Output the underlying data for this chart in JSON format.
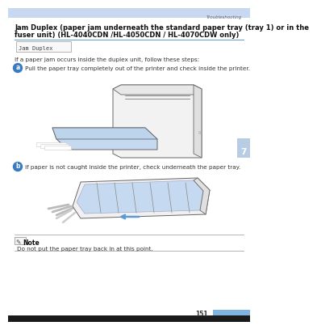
{
  "bg_color": "#ffffff",
  "header_bar_color": "#c8d8f0",
  "top_label": "Troubleshooting",
  "title_line1": "Jam Duplex (paper jam underneath the standard paper tray (tray 1) or in the",
  "title_line2": "fuser unit) (HL-4040CDN /HL-4050CDN / HL-4070CDW only)",
  "title_fontsize": 6.0,
  "lcd_text": "Jam Duplex",
  "intro_text": "If a paper jam occurs inside the duplex unit, follow these steps:",
  "step1_text": "Pull the paper tray completely out of the printer and check inside the printer.",
  "step2_text": "If paper is not caught inside the printer, check underneath the paper tray.",
  "note_title": "Note",
  "note_text": "Do not put the paper tray back in at this point.",
  "page_num": "151",
  "right_tab_color": "#b8cce4",
  "right_tab_label": "7",
  "step_circle_color": "#3a7bbf",
  "blue_highlight": "#5b9bd5",
  "title_underline_color": "#5b9bd5",
  "footer_bar_color": "#1a1a1a",
  "page_num_bar_color": "#7fb3e0",
  "sketch_color": "#999999",
  "sketch_edge": "#666666"
}
